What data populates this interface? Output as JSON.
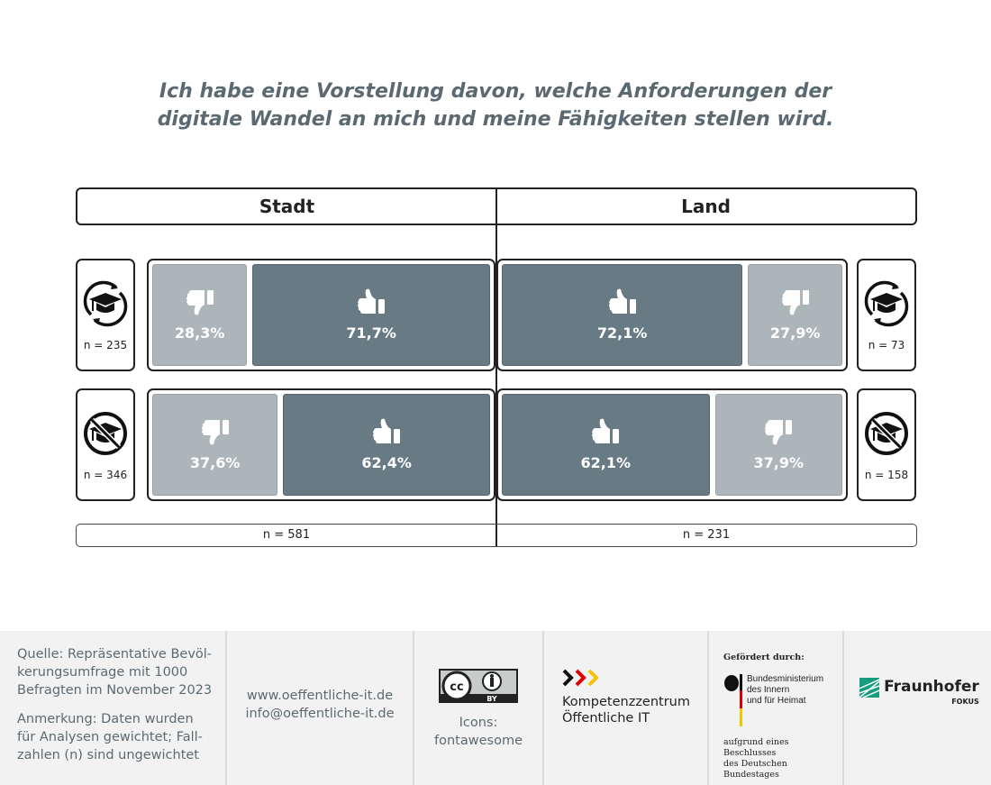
{
  "title": {
    "line1": "Ich habe eine Vorstellung davon, welche Anforderungen der",
    "line2": "digitale Wandel an mich und meine Fähigkeiten stellen wird."
  },
  "columns": {
    "left": "Stadt",
    "right": "Land"
  },
  "colors": {
    "no": "#abb5ba",
    "yes": "#687a84"
  },
  "chart_data": {
    "type": "bar",
    "title": "Ich habe eine Vorstellung davon, welche Anforderungen der digitale Wandel an mich und meine Fähigkeiten stellen wird.",
    "groups": [
      "Stadt",
      "Land"
    ],
    "rows": [
      {
        "icon": "graduation-cap-cycle-icon",
        "stadt": {
          "n": "n = 235",
          "no": 28.3,
          "yes": 71.7,
          "no_label": "28,3%",
          "yes_label": "71,7%"
        },
        "land": {
          "n": "n = 73",
          "no": 27.9,
          "yes": 72.1,
          "no_label": "27,9%",
          "yes_label": "72,1%"
        }
      },
      {
        "icon": "no-graduation-cap-icon",
        "stadt": {
          "n": "n = 346",
          "no": 37.6,
          "yes": 62.4,
          "no_label": "37,6%",
          "yes_label": "62,4%"
        },
        "land": {
          "n": "n = 158",
          "no": 37.9,
          "yes": 62.1,
          "no_label": "37,9%",
          "yes_label": "62,1%"
        }
      }
    ],
    "totals": {
      "stadt": "n = 581",
      "land": "n = 231"
    }
  },
  "footer": {
    "source": "Quelle: Repräsentative Bevöl-kerungsumfrage mit 1000 Befragten im November 2023",
    "note": "Anmerkung: Daten wurden für Analysen gewichtet; Fall-zahlen (n) sind ungewichtet",
    "web": "www.oeffentliche-it.de",
    "mail": "info@oeffentliche-it.de",
    "license": "CC BY",
    "icons1": "Icons:",
    "icons2": "fontawesome",
    "kompetenz1": "Kompetenzzentrum",
    "kompetenz2": "Öffentliche IT",
    "funded": "Gefördert durch:",
    "bmi1": "Bundesministerium",
    "bmi2": "des Innern",
    "bmi3": "und für Heimat",
    "beschluss1": "aufgrund eines Beschlusses",
    "beschluss2": "des Deutschen Bundestages",
    "fraunhofer": "Fraunhofer",
    "fokus": "FOKUS"
  }
}
